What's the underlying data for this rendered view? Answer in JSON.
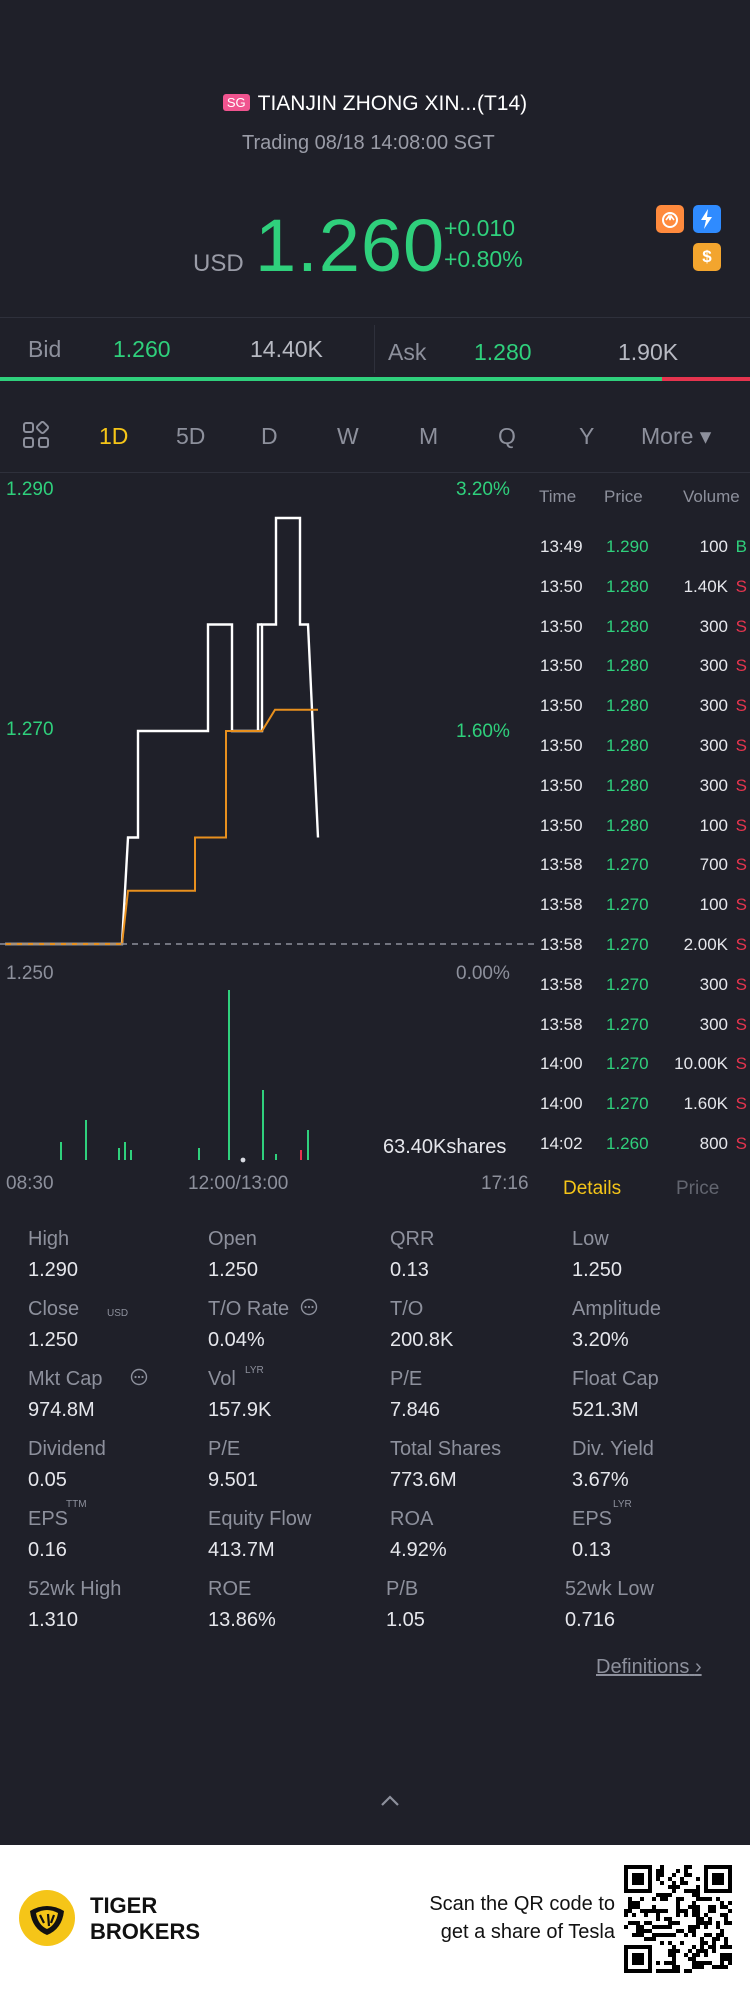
{
  "header": {
    "market_badge": "SG",
    "title": "TIANJIN ZHONG XIN...(T14)",
    "status": "Trading 08/18 14:08:00 SGT",
    "currency": "USD",
    "price": "1.260",
    "change": "+0.010",
    "change_pct": "+0.80%",
    "icons": [
      "crown-icon",
      "lightning-icon",
      "dollar-icon"
    ]
  },
  "quote": {
    "bid_label": "Bid",
    "bid_price": "1.260",
    "bid_size": "14.40K",
    "ask_label": "Ask",
    "ask_price": "1.280",
    "ask_size": "1.90K",
    "bid_share": 0.883
  },
  "tabs": [
    "1D",
    "5D",
    "D",
    "W",
    "M",
    "Q",
    "Y"
  ],
  "tabs_active": "1D",
  "tabs_more": "More ▾",
  "chart": {
    "y_top": "1.290",
    "y_mid": "1.270",
    "y_bot": "1.250",
    "pct_top": "3.20%",
    "pct_mid": "1.60%",
    "pct_bot": "0.00%",
    "volume_label": "63.40Kshares",
    "x_start": "08:30",
    "x_mid": "12:00/13:00",
    "x_end": "17:16"
  },
  "chart_data": {
    "type": "line",
    "title": "",
    "ylim": [
      1.25,
      1.29
    ],
    "series": [
      {
        "values": [
          1.25,
          1.25,
          1.26,
          1.27,
          1.27,
          1.28,
          1.27,
          1.28,
          1.27,
          1.29,
          1.28,
          1.26
        ]
      },
      {
        "values": [
          1.25,
          1.25,
          1.255,
          1.255,
          1.26,
          1.27,
          1.27,
          1.272,
          1.272,
          1.272
        ]
      }
    ]
  },
  "trades": {
    "headers": [
      "Time",
      "Price",
      "Volume"
    ],
    "rows": [
      {
        "time": "13:49",
        "price": "1.290",
        "vol": "100",
        "flag": "B"
      },
      {
        "time": "13:50",
        "price": "1.280",
        "vol": "1.40K",
        "flag": "S"
      },
      {
        "time": "13:50",
        "price": "1.280",
        "vol": "300",
        "flag": "S"
      },
      {
        "time": "13:50",
        "price": "1.280",
        "vol": "300",
        "flag": "S"
      },
      {
        "time": "13:50",
        "price": "1.280",
        "vol": "300",
        "flag": "S"
      },
      {
        "time": "13:50",
        "price": "1.280",
        "vol": "300",
        "flag": "S"
      },
      {
        "time": "13:50",
        "price": "1.280",
        "vol": "300",
        "flag": "S"
      },
      {
        "time": "13:50",
        "price": "1.280",
        "vol": "100",
        "flag": "S"
      },
      {
        "time": "13:58",
        "price": "1.270",
        "vol": "700",
        "flag": "S"
      },
      {
        "time": "13:58",
        "price": "1.270",
        "vol": "100",
        "flag": "S"
      },
      {
        "time": "13:58",
        "price": "1.270",
        "vol": "2.00K",
        "flag": "S"
      },
      {
        "time": "13:58",
        "price": "1.270",
        "vol": "300",
        "flag": "S"
      },
      {
        "time": "13:58",
        "price": "1.270",
        "vol": "300",
        "flag": "S"
      },
      {
        "time": "14:00",
        "price": "1.270",
        "vol": "10.00K",
        "flag": "S"
      },
      {
        "time": "14:00",
        "price": "1.270",
        "vol": "1.60K",
        "flag": "S"
      },
      {
        "time": "14:02",
        "price": "1.260",
        "vol": "800",
        "flag": "S"
      }
    ],
    "tab_details": "Details",
    "tab_price": "Price"
  },
  "stats": [
    [
      {
        "l": "High",
        "v": "1.290"
      },
      {
        "l": "Open",
        "v": "1.250"
      },
      {
        "l": "QRR",
        "v": "0.13"
      },
      {
        "l": "Low",
        "v": "1.250"
      }
    ],
    [
      {
        "l": "Close",
        "v": "1.250"
      },
      {
        "l": "T/O Rate",
        "v": "0.04%"
      },
      {
        "l": "T/O",
        "v": "200.8K"
      },
      {
        "l": "Amplitude",
        "v": "3.20%"
      }
    ],
    [
      {
        "l": "Mkt Cap",
        "v": "974.8M"
      },
      {
        "l": "Vol",
        "v": "157.9K"
      },
      {
        "l": "P/E",
        "v": "7.846"
      },
      {
        "l": "Float Cap",
        "v": "521.3M"
      }
    ],
    [
      {
        "l": "Dividend",
        "v": "0.05"
      },
      {
        "l": "P/E",
        "v": "9.501"
      },
      {
        "l": "Total Shares",
        "v": "773.6M"
      },
      {
        "l": "Div. Yield",
        "v": "3.67%"
      }
    ],
    [
      {
        "l": "EPS",
        "v": "0.16"
      },
      {
        "l": "Equity Flow",
        "v": "413.7M"
      },
      {
        "l": "ROA",
        "v": "4.92%"
      },
      {
        "l": "EPS",
        "v": "0.13"
      }
    ],
    [
      {
        "l": "52wk High",
        "v": "1.310"
      },
      {
        "l": "ROE",
        "v": "13.86%"
      },
      {
        "l": "P/B",
        "v": "1.05"
      },
      {
        "l": "52wk Low",
        "v": "0.716"
      }
    ]
  ],
  "sup": {
    "usd": "USD",
    "lyr": "LYR",
    "ttm": "TTM",
    "lyr2": "LYR"
  },
  "definitions": "Definitions",
  "footer": {
    "brand_line1": "TIGER",
    "brand_line2": "BROKERS",
    "cta_line1": "Scan the QR code to",
    "cta_line2": "get a share of Tesla"
  }
}
